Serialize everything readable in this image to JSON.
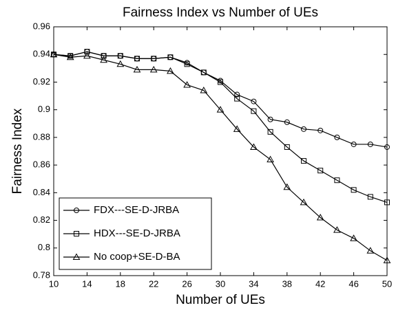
{
  "chart_data": {
    "type": "line",
    "title": "Fairness Index vs Number of UEs",
    "x_label": "Number of UEs",
    "y_label": "Fairness Index",
    "x": [
      10,
      12,
      14,
      16,
      18,
      20,
      22,
      24,
      26,
      28,
      30,
      32,
      34,
      36,
      38,
      40,
      42,
      44,
      46,
      48,
      50
    ],
    "series": [
      {
        "name": "FDX---SE-D-JRBA",
        "color": "#000000",
        "marker": "circle",
        "values": [
          0.94,
          0.939,
          0.942,
          0.939,
          0.939,
          0.937,
          0.937,
          0.938,
          0.934,
          0.927,
          0.921,
          0.911,
          0.906,
          0.893,
          0.891,
          0.886,
          0.885,
          0.88,
          0.875,
          0.875,
          0.873
        ]
      },
      {
        "name": "HDX---SE-D-JRBA",
        "color": "#000000",
        "marker": "square",
        "values": [
          0.94,
          0.939,
          0.942,
          0.939,
          0.939,
          0.937,
          0.937,
          0.938,
          0.933,
          0.927,
          0.92,
          0.908,
          0.899,
          0.884,
          0.873,
          0.863,
          0.856,
          0.849,
          0.842,
          0.837,
          0.833
        ]
      },
      {
        "name": "No coop+SE-D-BA",
        "color": "#000000",
        "marker": "triangle",
        "values": [
          0.94,
          0.938,
          0.939,
          0.936,
          0.933,
          0.929,
          0.929,
          0.928,
          0.918,
          0.914,
          0.9,
          0.886,
          0.873,
          0.864,
          0.844,
          0.833,
          0.822,
          0.813,
          0.807,
          0.798,
          0.791
        ]
      }
    ],
    "xlim": [
      10,
      50
    ],
    "xticks": [
      10,
      14,
      18,
      22,
      26,
      30,
      34,
      38,
      42,
      46,
      50
    ],
    "ylim": [
      0.78,
      0.96
    ],
    "yticks": [
      0.78,
      0.8,
      0.82,
      0.84,
      0.86,
      0.88,
      0.9,
      0.92,
      0.94,
      0.96
    ],
    "grid": false,
    "legend_position": "lower left"
  }
}
